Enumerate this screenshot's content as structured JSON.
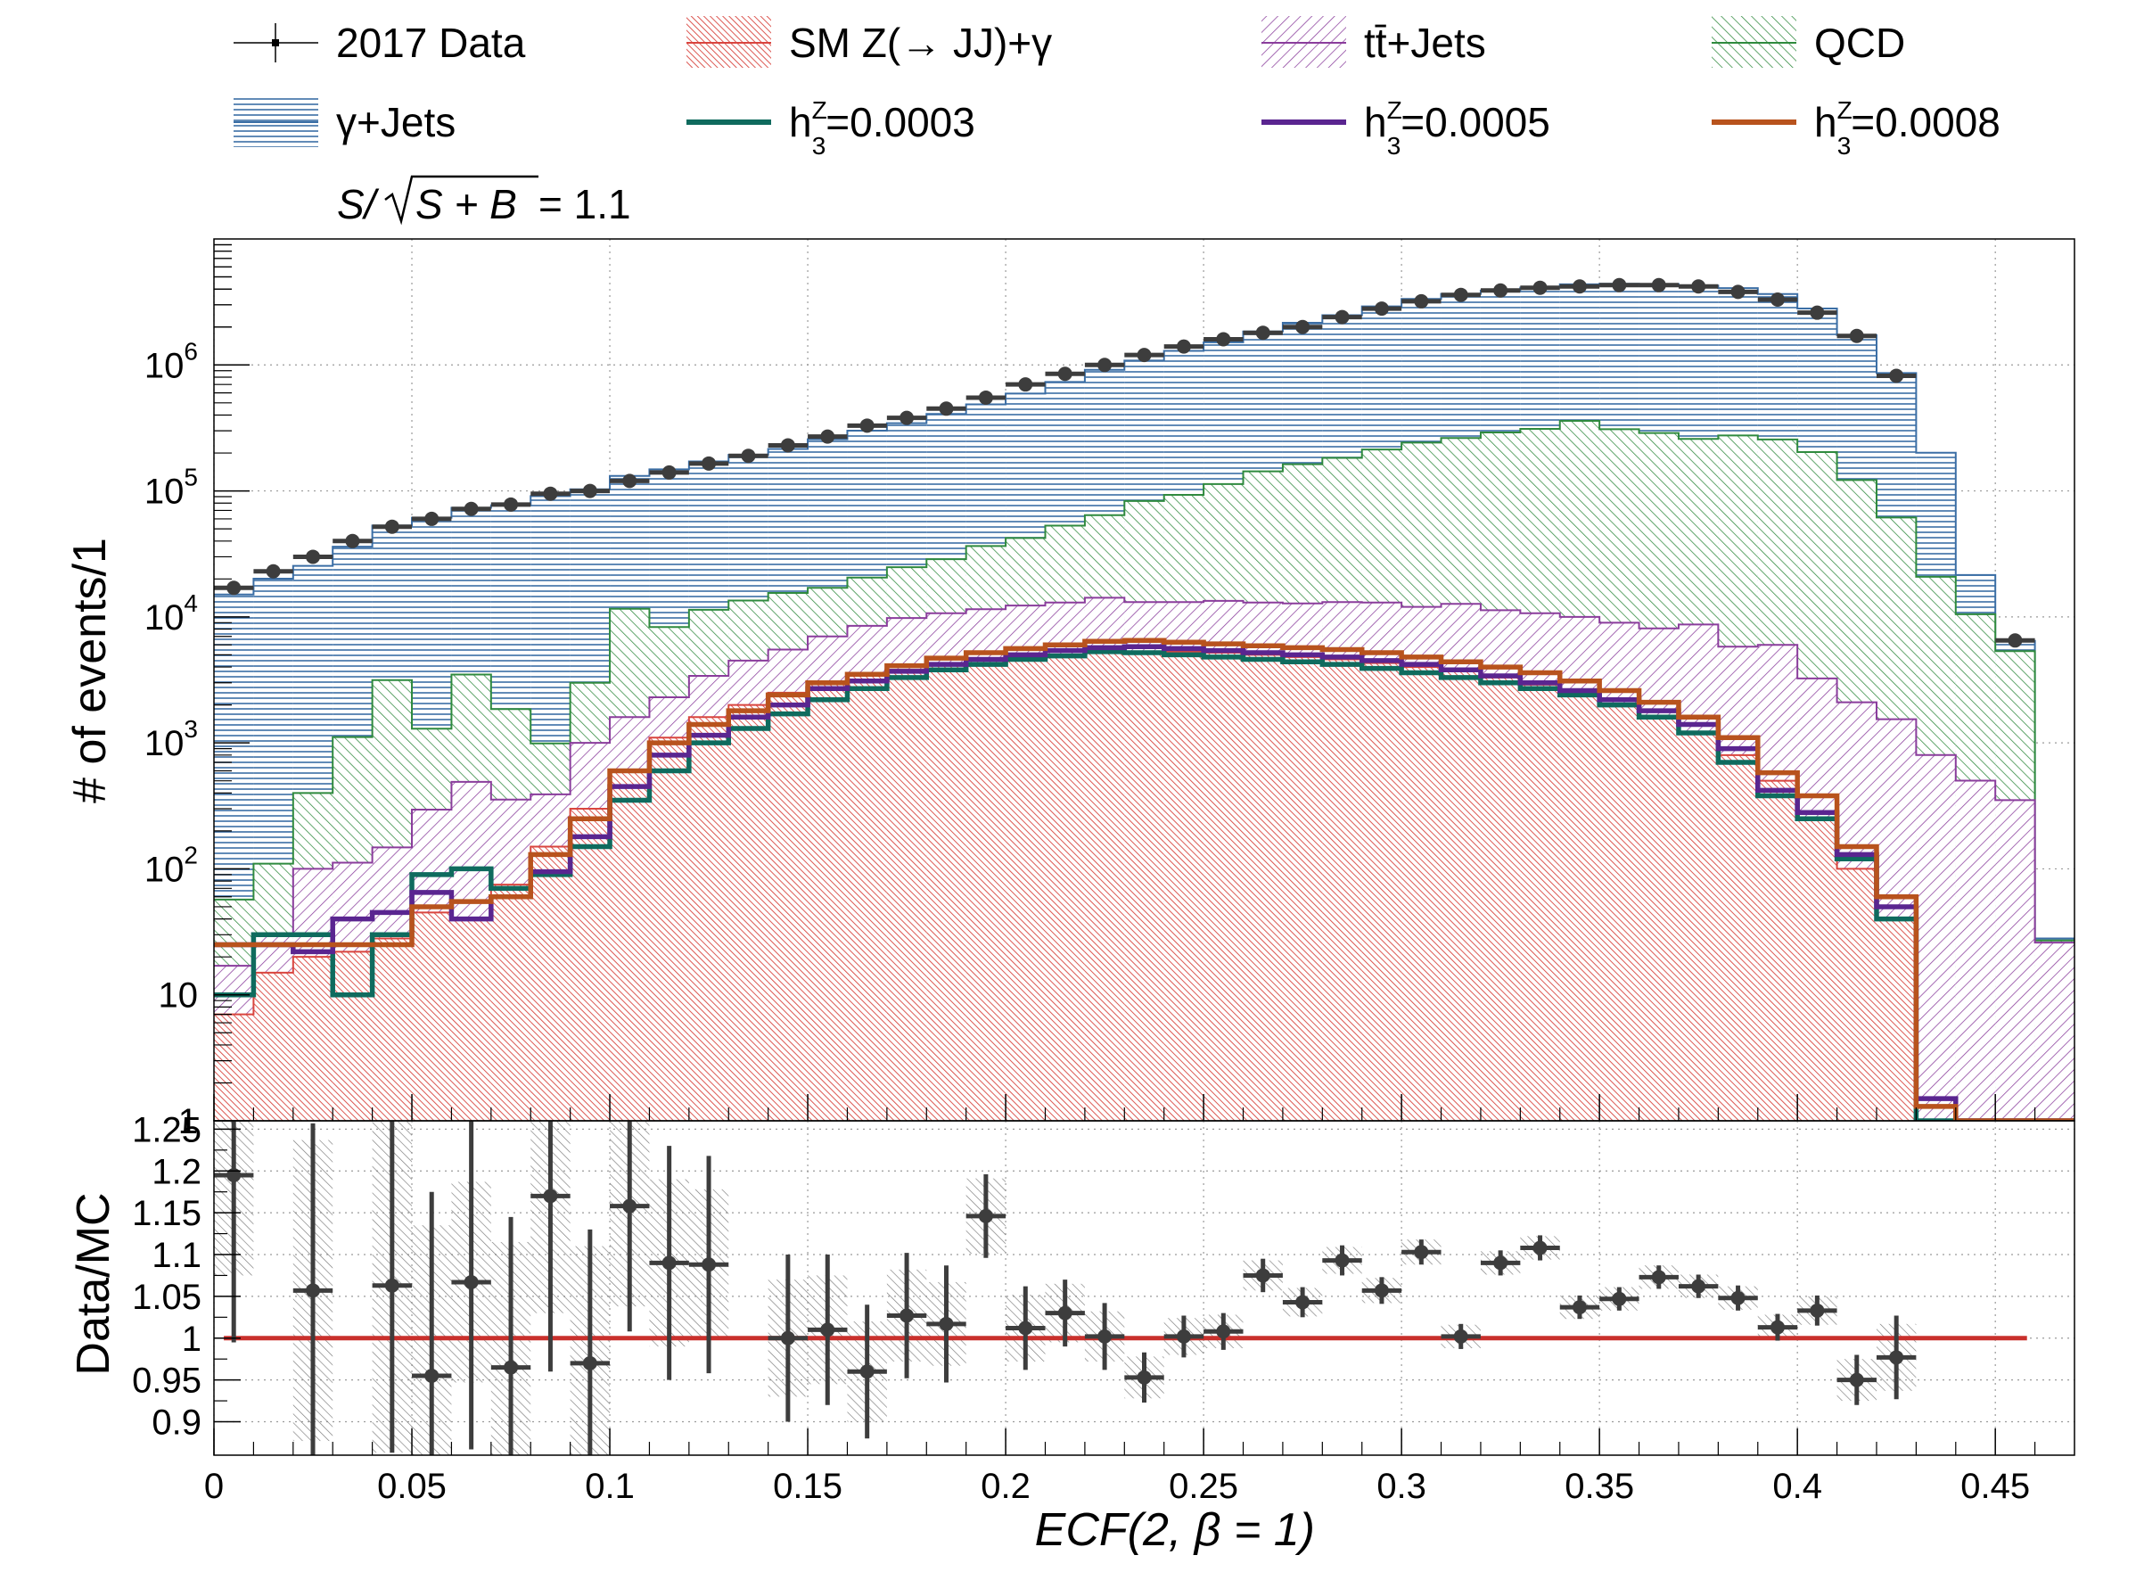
{
  "chart_data": [
    {
      "type": "histogram-stack",
      "name": "main",
      "title": "",
      "xlabel": "ECF(2, β = 1)",
      "ylabel": "# of events/1",
      "y_scale": "log",
      "ylim": [
        1,
        10000000
      ],
      "xlim": [
        0,
        0.47
      ],
      "bin_width": 0.01,
      "bin_lows": [
        0,
        0.01,
        0.02,
        0.03,
        0.04,
        0.05,
        0.06,
        0.07,
        0.08,
        0.09,
        0.1,
        0.11,
        0.12,
        0.13,
        0.14,
        0.15,
        0.16,
        0.17,
        0.18,
        0.19,
        0.2,
        0.21,
        0.22,
        0.23,
        0.24,
        0.25,
        0.26,
        0.27,
        0.28,
        0.29,
        0.3,
        0.31,
        0.32,
        0.33,
        0.34,
        0.35,
        0.36,
        0.37,
        0.38,
        0.39,
        0.4,
        0.41,
        0.42,
        0.43,
        0.44,
        0.45,
        0.46
      ],
      "y_ticks": [
        {
          "value": 1,
          "label": "1"
        },
        {
          "value": 10,
          "label": "10"
        },
        {
          "value": 100,
          "label": "10",
          "exp": "2"
        },
        {
          "value": 1000,
          "label": "10",
          "exp": "3"
        },
        {
          "value": 10000,
          "label": "10",
          "exp": "4"
        },
        {
          "value": 100000,
          "label": "10",
          "exp": "5"
        },
        {
          "value": 1000000,
          "label": "10",
          "exp": "6"
        }
      ],
      "stack": [
        {
          "name": "SM Z(→ JJ)+γ",
          "color": "#d9453f",
          "hatch": "red",
          "values": [
            7,
            15,
            20,
            22,
            28,
            45,
            40,
            75,
            150,
            300,
            600,
            1100,
            1600,
            2000,
            2500,
            3000,
            3500,
            3800,
            4200,
            4500,
            4800,
            5000,
            5200,
            5300,
            5300,
            5200,
            5000,
            4800,
            4600,
            4300,
            4000,
            3700,
            3300,
            2900,
            2500,
            2000,
            1600,
            1200,
            800,
            500,
            250,
            100,
            40,
            1,
            1,
            1,
            1
          ]
        },
        {
          "name": "tt̄+Jets",
          "color": "#8a3d9c",
          "hatch": "purple",
          "values": [
            10,
            15,
            80,
            90,
            120,
            250,
            450,
            280,
            240,
            700,
            1000,
            1200,
            1800,
            2500,
            3000,
            4000,
            5000,
            6000,
            6500,
            7000,
            7500,
            8000,
            9000,
            7800,
            7800,
            8200,
            8000,
            8000,
            8500,
            8700,
            8000,
            9000,
            8000,
            7800,
            7500,
            7000,
            6500,
            7500,
            5000,
            5500,
            3000,
            2000,
            1500,
            800,
            500,
            350,
            25
          ]
        },
        {
          "name": "QCD",
          "color": "#2f8a3e",
          "hatch": "green",
          "values": [
            40,
            80,
            300,
            1000,
            3000,
            1000,
            3000,
            1500,
            600,
            2000,
            10000,
            6000,
            8000,
            9000,
            10000,
            10000,
            12000,
            15000,
            18000,
            25000,
            30000,
            40000,
            50000,
            70000,
            80000,
            100000,
            130000,
            150000,
            170000,
            200000,
            230000,
            250000,
            280000,
            300000,
            350000,
            300000,
            280000,
            250000,
            270000,
            250000,
            200000,
            120000,
            60000,
            20000,
            10000,
            5000,
            1
          ]
        },
        {
          "name": "γ+Jets",
          "color": "#3b6ea5",
          "hatch": "blue",
          "values": [
            15000,
            20000,
            25000,
            35000,
            50000,
            60000,
            70000,
            75000,
            90000,
            100000,
            120000,
            140000,
            160000,
            180000,
            200000,
            240000,
            280000,
            320000,
            380000,
            450000,
            550000,
            680000,
            850000,
            1000000,
            1200000,
            1400000,
            1700000,
            2000000,
            2300000,
            2700000,
            3100000,
            3400000,
            3600000,
            3800000,
            4000000,
            4100000,
            4100000,
            4000000,
            3800000,
            3400000,
            2600000,
            1600000,
            800000,
            180000,
            11000,
            1100,
            1
          ]
        }
      ],
      "signals": [
        {
          "name": "h₃ᶻ=0.0003",
          "label_base": "h",
          "label_sub": "3",
          "label_sup": "Z",
          "label_rest": "=0.0003",
          "color": "#0f6b5e",
          "values": [
            10,
            30,
            30,
            10,
            30,
            90,
            100,
            70,
            90,
            150,
            350,
            600,
            1000,
            1300,
            1700,
            2200,
            2700,
            3300,
            3800,
            4200,
            4600,
            4900,
            5300,
            5200,
            5000,
            4800,
            4600,
            4400,
            4200,
            3900,
            3600,
            3300,
            3000,
            2700,
            2400,
            2000,
            1600,
            1200,
            700,
            380,
            250,
            120,
            40,
            1,
            1,
            1,
            1
          ]
        },
        {
          "name": "h₃ᶻ=0.0005",
          "label_base": "h",
          "label_sub": "3",
          "label_sup": "Z",
          "label_rest": "=0.0005",
          "color": "#5a2590",
          "values": [
            25,
            25,
            22,
            40,
            45,
            65,
            40,
            60,
            95,
            180,
            450,
            800,
            1150,
            1600,
            2000,
            2700,
            3100,
            3700,
            4200,
            4600,
            5000,
            5400,
            5700,
            5800,
            5600,
            5400,
            5200,
            5000,
            4800,
            4500,
            4200,
            3800,
            3400,
            3000,
            2600,
            2200,
            1800,
            1400,
            900,
            420,
            280,
            130,
            50,
            1.5,
            1,
            1,
            1
          ]
        },
        {
          "name": "h₃ᶻ=0.0008",
          "label_base": "h",
          "label_sub": "3",
          "label_sup": "Z",
          "label_rest": "=0.0008",
          "color": "#b8531d",
          "values": [
            25,
            25,
            25,
            25,
            25,
            50,
            55,
            60,
            130,
            250,
            600,
            1000,
            1400,
            1800,
            2400,
            3000,
            3500,
            4100,
            4700,
            5200,
            5600,
            6000,
            6400,
            6500,
            6300,
            6100,
            5900,
            5700,
            5500,
            5200,
            4800,
            4400,
            4000,
            3600,
            3100,
            2600,
            2100,
            1600,
            1100,
            580,
            380,
            150,
            60,
            1.3,
            1,
            1,
            1
          ]
        }
      ],
      "data": {
        "name": "2017 Data",
        "x": [
          0.005,
          0.015,
          0.025,
          0.035,
          0.045,
          0.055,
          0.065,
          0.075,
          0.085,
          0.095,
          0.105,
          0.115,
          0.125,
          0.135,
          0.145,
          0.155,
          0.165,
          0.175,
          0.185,
          0.195,
          0.205,
          0.215,
          0.225,
          0.235,
          0.245,
          0.255,
          0.265,
          0.275,
          0.285,
          0.295,
          0.305,
          0.315,
          0.325,
          0.335,
          0.345,
          0.355,
          0.365,
          0.375,
          0.385,
          0.395,
          0.405,
          0.415,
          0.425,
          0.455
        ],
        "y": [
          17000,
          23000,
          30000,
          40000,
          52000,
          60000,
          72000,
          78000,
          95000,
          100000,
          120000,
          140000,
          165000,
          190000,
          230000,
          270000,
          330000,
          380000,
          450000,
          550000,
          700000,
          850000,
          1000000,
          1200000,
          1400000,
          1600000,
          1800000,
          2000000,
          2400000,
          2800000,
          3200000,
          3600000,
          3900000,
          4100000,
          4200000,
          4300000,
          4300000,
          4200000,
          3800000,
          3300000,
          2600000,
          1700000,
          820000,
          6500
        ]
      }
    },
    {
      "type": "ratio",
      "name": "ratio",
      "title": "",
      "xlabel": "ECF(2, β = 1)",
      "ylabel": "Data/MC",
      "ylim": [
        0.86,
        1.26
      ],
      "xlim": [
        0,
        0.47
      ],
      "y_ticks": [
        0.9,
        0.95,
        1,
        1.05,
        1.1,
        1.15,
        1.2,
        1.25
      ],
      "y_tick_labels": [
        "0.9",
        "0.95",
        "1",
        "1.05",
        "1.1",
        "1.15",
        "1.2",
        "1.25"
      ],
      "x_ticks": [
        0,
        0.05,
        0.1,
        0.15,
        0.2,
        0.25,
        0.3,
        0.35,
        0.4,
        0.45
      ],
      "x_tick_labels": [
        "0",
        "0.05",
        "0.1",
        "0.15",
        "0.2",
        "0.25",
        "0.3",
        "0.35",
        "0.4",
        "0.45"
      ],
      "reference_line": 1,
      "reference_color": "#c9302c",
      "points": [
        {
          "x": 0.005,
          "y": 1.195,
          "err": 0.2,
          "band": 0.12
        },
        {
          "x": 0.025,
          "y": 1.057,
          "err": 0.2,
          "band": 0.18
        },
        {
          "x": 0.045,
          "y": 1.063,
          "err": 0.2,
          "band": 0.2
        },
        {
          "x": 0.055,
          "y": 0.955,
          "err": 0.22,
          "band": 0.18
        },
        {
          "x": 0.065,
          "y": 1.067,
          "err": 0.2,
          "band": 0.12
        },
        {
          "x": 0.075,
          "y": 0.965,
          "err": 0.18,
          "band": 0.15
        },
        {
          "x": 0.085,
          "y": 1.17,
          "err": 0.21,
          "band": 0.14
        },
        {
          "x": 0.095,
          "y": 0.97,
          "err": 0.16,
          "band": 0.14
        },
        {
          "x": 0.105,
          "y": 1.158,
          "err": 0.15,
          "band": 0.12
        },
        {
          "x": 0.115,
          "y": 1.09,
          "err": 0.14,
          "band": 0.1
        },
        {
          "x": 0.125,
          "y": 1.088,
          "err": 0.13,
          "band": 0.09
        },
        {
          "x": 0.145,
          "y": 1.0,
          "err": 0.1,
          "band": 0.07
        },
        {
          "x": 0.155,
          "y": 1.01,
          "err": 0.09,
          "band": 0.065
        },
        {
          "x": 0.165,
          "y": 0.96,
          "err": 0.08,
          "band": 0.06
        },
        {
          "x": 0.175,
          "y": 1.027,
          "err": 0.075,
          "band": 0.055
        },
        {
          "x": 0.185,
          "y": 1.017,
          "err": 0.07,
          "band": 0.05
        },
        {
          "x": 0.195,
          "y": 1.146,
          "err": 0.05,
          "band": 0.045
        },
        {
          "x": 0.205,
          "y": 1.012,
          "err": 0.05,
          "band": 0.04
        },
        {
          "x": 0.215,
          "y": 1.03,
          "err": 0.04,
          "band": 0.035
        },
        {
          "x": 0.225,
          "y": 1.002,
          "err": 0.04,
          "band": 0.03
        },
        {
          "x": 0.235,
          "y": 0.953,
          "err": 0.03,
          "band": 0.025
        },
        {
          "x": 0.245,
          "y": 1.002,
          "err": 0.025,
          "band": 0.022
        },
        {
          "x": 0.255,
          "y": 1.008,
          "err": 0.022,
          "band": 0.02
        },
        {
          "x": 0.265,
          "y": 1.075,
          "err": 0.02,
          "band": 0.018
        },
        {
          "x": 0.275,
          "y": 1.043,
          "err": 0.018,
          "band": 0.017
        },
        {
          "x": 0.285,
          "y": 1.093,
          "err": 0.018,
          "band": 0.016
        },
        {
          "x": 0.295,
          "y": 1.057,
          "err": 0.016,
          "band": 0.015
        },
        {
          "x": 0.305,
          "y": 1.103,
          "err": 0.015,
          "band": 0.015
        },
        {
          "x": 0.315,
          "y": 1.002,
          "err": 0.015,
          "band": 0.014
        },
        {
          "x": 0.325,
          "y": 1.09,
          "err": 0.015,
          "band": 0.014
        },
        {
          "x": 0.335,
          "y": 1.108,
          "err": 0.015,
          "band": 0.014
        },
        {
          "x": 0.345,
          "y": 1.037,
          "err": 0.014,
          "band": 0.014
        },
        {
          "x": 0.355,
          "y": 1.047,
          "err": 0.014,
          "band": 0.014
        },
        {
          "x": 0.365,
          "y": 1.073,
          "err": 0.014,
          "band": 0.014
        },
        {
          "x": 0.375,
          "y": 1.062,
          "err": 0.014,
          "band": 0.014
        },
        {
          "x": 0.385,
          "y": 1.048,
          "err": 0.015,
          "band": 0.014
        },
        {
          "x": 0.395,
          "y": 1.013,
          "err": 0.016,
          "band": 0.015
        },
        {
          "x": 0.405,
          "y": 1.033,
          "err": 0.018,
          "band": 0.017
        },
        {
          "x": 0.415,
          "y": 0.95,
          "err": 0.03,
          "band": 0.025
        },
        {
          "x": 0.425,
          "y": 0.977,
          "err": 0.05,
          "band": 0.04
        }
      ]
    }
  ],
  "legend": [
    {
      "label": "2017 Data",
      "kind": "marker"
    },
    {
      "label": "SM Z(→ JJ)+γ",
      "kind": "hatch",
      "color": "#d9453f"
    },
    {
      "label": "tt̄+Jets",
      "kind": "hatch",
      "color": "#8a3d9c"
    },
    {
      "label": "QCD",
      "kind": "hatch",
      "color": "#2f8a3e"
    },
    {
      "label": "γ+Jets",
      "kind": "hatch",
      "color": "#3b6ea5"
    },
    {
      "label": "h=0.0003",
      "kind": "line",
      "color": "#0f6b5e",
      "sub": "3",
      "sup": "Z",
      "rest": "=0.0003"
    },
    {
      "label": "h=0.0005",
      "kind": "line",
      "color": "#5a2590",
      "sub": "3",
      "sup": "Z",
      "rest": "=0.0005"
    },
    {
      "label": "h=0.0008",
      "kind": "line",
      "color": "#b8531d",
      "sub": "3",
      "sup": "Z",
      "rest": "=0.0008"
    }
  ],
  "significance": {
    "prefix_s": "S/",
    "sqrt_body": "S + B",
    "suffix": " = 1.1"
  },
  "colors": {
    "data_marker": "#3d3d3d",
    "band": "#666666"
  }
}
